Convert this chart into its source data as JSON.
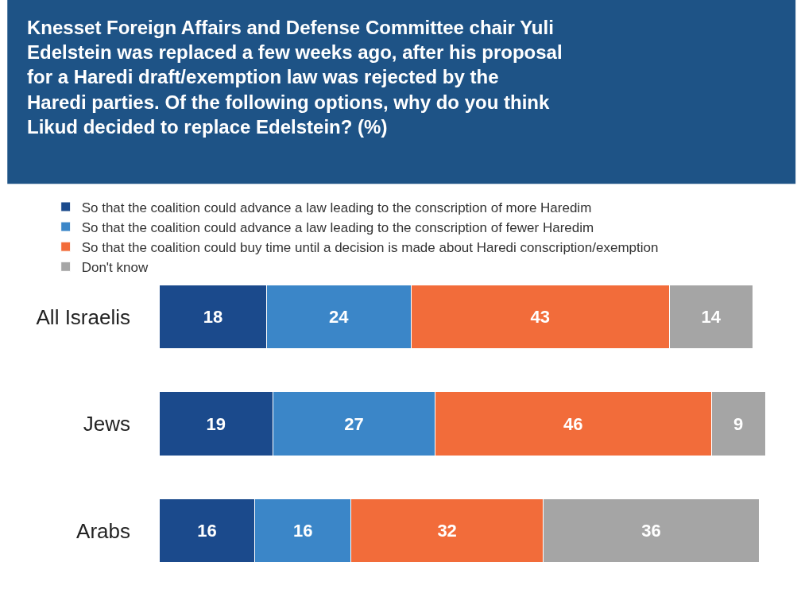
{
  "chart_data": {
    "type": "bar",
    "orientation": "horizontal",
    "stacked": true,
    "data_labels": true,
    "legend": "top left",
    "title": "Knesset Foreign Affairs and Defense Committee chair Yuli Edelstein was replaced a few weeks ago, after his proposal for a Haredi draft/exemption law was rejected by the Haredi parties. Of the following options, why do you think Likud decided to replace Edelstein? (%)",
    "categories": [
      "All Israelis",
      "Jews",
      "Arabs"
    ],
    "series": [
      {
        "name": "So that the coalition could advance a law leading to the conscription of more Haredim",
        "color": "#1b4a8c",
        "values": [
          18,
          19,
          16
        ]
      },
      {
        "name": "So that the coalition could advance a law leading to the conscription of fewer Haredim",
        "color": "#3b86c8",
        "values": [
          24,
          27,
          16
        ]
      },
      {
        "name": "So that the coalition could buy time until a decision is made about Haredi conscription/exemption",
        "color": "#f26c3a",
        "values": [
          43,
          46,
          32
        ]
      },
      {
        "name": "Don't know",
        "color": "#a5a5a5",
        "values": [
          14,
          9,
          36
        ]
      }
    ]
  }
}
